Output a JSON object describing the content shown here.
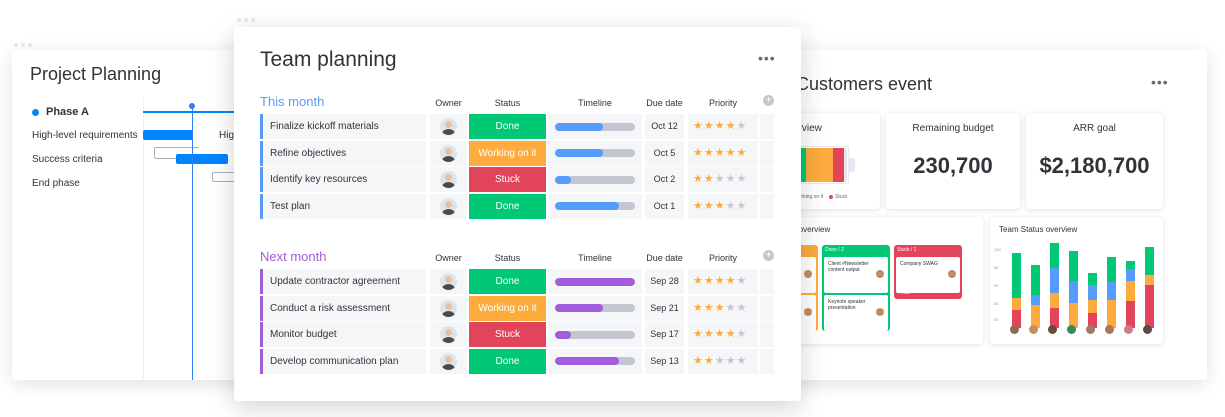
{
  "project_planning": {
    "title": "Project Planning",
    "phase": "Phase A",
    "tasks": [
      "High-level requirements",
      "Success criteria",
      "End phase"
    ],
    "bar_label": "Hig"
  },
  "customers_event": {
    "title": "Customers event",
    "more": "•••",
    "overview_label": "verview",
    "overview_legend": [
      "Working on it",
      "Stuck"
    ],
    "remaining_budget_label": "Remaining budget",
    "remaining_budget_value": "230,700",
    "arr_goal_label": "ARR goal",
    "arr_goal_value": "$2,180,700",
    "status_overview_label": "us overview",
    "kanban": [
      {
        "header": "Done / 2",
        "cards": [
          "Client #Newsletter content output",
          "Keynote speaker presentation"
        ],
        "add": "+ Add",
        "color": "#00c875"
      },
      {
        "header": "Stuck / 1",
        "cards": [
          "Company SWAG"
        ],
        "add": "+ Add",
        "color": "#e2445c"
      }
    ],
    "team_status_label": "Team Status overview",
    "team_status_ticks": [
      "100",
      "80",
      "60",
      "40",
      "20"
    ]
  },
  "team_planning": {
    "title": "Team planning",
    "more": "•••",
    "columns": {
      "owner": "Owner",
      "status": "Status",
      "timeline": "Timeline",
      "due": "Due date",
      "priority": "Priority"
    },
    "groups": [
      {
        "title": "This month",
        "color": "#579bfc",
        "rows": [
          {
            "name": "Finalize kickoff materials",
            "status": "Done",
            "status_color": "#00c875",
            "timeline": 0.6,
            "due": "Oct 12",
            "priority": 4
          },
          {
            "name": "Refine objectives",
            "status": "Working on it",
            "status_color": "#fdab3d",
            "timeline": 0.6,
            "due": "Oct 5",
            "priority": 5
          },
          {
            "name": "Identify key resources",
            "status": "Stuck",
            "status_color": "#e2445c",
            "timeline": 0.2,
            "due": "Oct 2",
            "priority": 2
          },
          {
            "name": "Test plan",
            "status": "Done",
            "status_color": "#00c875",
            "timeline": 0.8,
            "due": "Oct 1",
            "priority": 3
          }
        ]
      },
      {
        "title": "Next month",
        "color": "#a25ddc",
        "rows": [
          {
            "name": "Update contractor agreement",
            "status": "Done",
            "status_color": "#00c875",
            "timeline": 1.0,
            "due": "Sep 28",
            "priority": 4
          },
          {
            "name": "Conduct a risk assessment",
            "status": "Working on it",
            "status_color": "#fdab3d",
            "timeline": 0.6,
            "due": "Sep 21",
            "priority": 3
          },
          {
            "name": "Monitor budget",
            "status": "Stuck",
            "status_color": "#e2445c",
            "timeline": 0.2,
            "due": "Sep 17",
            "priority": 4
          },
          {
            "name": "Develop communication plan",
            "status": "Done",
            "status_color": "#00c875",
            "timeline": 0.8,
            "due": "Sep 13",
            "priority": 2
          }
        ]
      }
    ]
  }
}
